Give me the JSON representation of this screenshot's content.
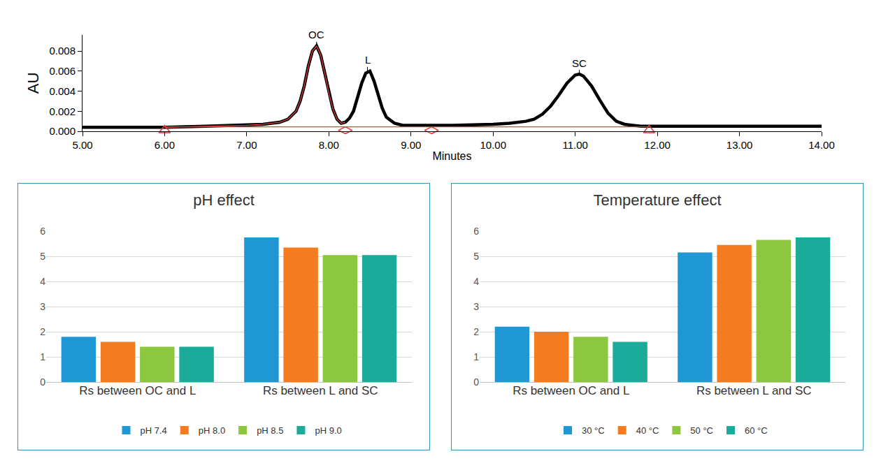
{
  "chart_data": [
    {
      "type": "line",
      "x_label": "Minutes",
      "y_label": "AU",
      "x": [
        5.0,
        5.5,
        6.0,
        6.5,
        7.0,
        7.2,
        7.4,
        7.5,
        7.6,
        7.65,
        7.7,
        7.75,
        7.8,
        7.85,
        7.9,
        7.95,
        8.0,
        8.05,
        8.1,
        8.15,
        8.2,
        8.25,
        8.3,
        8.35,
        8.4,
        8.45,
        8.5,
        8.55,
        8.6,
        8.65,
        8.7,
        8.8,
        8.9,
        9.0,
        9.5,
        10.0,
        10.2,
        10.4,
        10.5,
        10.6,
        10.7,
        10.8,
        10.9,
        11.0,
        11.05,
        11.1,
        11.2,
        11.3,
        11.4,
        11.5,
        11.6,
        11.7,
        11.8,
        12.0,
        12.5,
        13.0,
        13.5,
        14.0
      ],
      "series": [
        {
          "color": "#000000",
          "values": [
            0.0004,
            0.0004,
            0.0004,
            0.0005,
            0.0006,
            0.0007,
            0.0009,
            0.0012,
            0.002,
            0.003,
            0.0045,
            0.0065,
            0.008,
            0.0085,
            0.0076,
            0.0058,
            0.0038,
            0.0022,
            0.0012,
            0.0008,
            0.0009,
            0.0013,
            0.002,
            0.0033,
            0.0048,
            0.0058,
            0.006,
            0.005,
            0.0036,
            0.0023,
            0.0014,
            0.0008,
            0.0006,
            0.0006,
            0.0006,
            0.0007,
            0.0008,
            0.001,
            0.0012,
            0.0017,
            0.0025,
            0.0036,
            0.0048,
            0.0056,
            0.0057,
            0.0055,
            0.0045,
            0.0031,
            0.0018,
            0.001,
            0.0007,
            0.0006,
            0.0005,
            0.0005,
            0.0005,
            0.0005,
            0.0005,
            0.0005
          ]
        },
        {
          "color": "#e03a3a",
          "values": [
            null,
            null,
            0.0004,
            0.0005,
            0.0006,
            0.0007,
            0.0009,
            0.0012,
            0.002,
            0.003,
            0.0045,
            0.0065,
            0.008,
            0.0085,
            0.0076,
            0.0058,
            0.0038,
            0.0022,
            0.0012,
            0.0008,
            0.0009,
            null,
            null,
            null,
            null,
            null,
            null,
            null,
            null,
            null,
            null,
            null,
            null,
            null,
            null,
            null,
            null,
            null,
            null,
            null,
            null,
            null,
            null,
            null,
            null,
            null,
            null,
            null,
            null,
            null,
            null,
            null,
            null,
            null,
            null,
            null,
            null,
            null
          ]
        },
        {
          "color": "#e03a3a",
          "x": [
            6.0,
            11.9
          ],
          "values": [
            0.00045,
            0.00045
          ]
        },
        {
          "color": "#e03a3a",
          "marker": "triangle-up-open",
          "x": [
            6.0,
            11.9
          ],
          "values": [
            0.0001,
            0.0001
          ]
        },
        {
          "color": "#e03a3a",
          "marker": "diamond-wide-open",
          "x": [
            8.2,
            9.25
          ],
          "values": [
            0.0001,
            0.0001
          ]
        }
      ],
      "annotations": [
        {
          "text": "OC",
          "x": 7.85,
          "y": 0.0085
        },
        {
          "text": "L",
          "x": 8.47,
          "y": 0.006
        },
        {
          "text": "SC",
          "x": 11.05,
          "y": 0.0057
        }
      ],
      "xlim": [
        5,
        14
      ],
      "xticks": [
        {
          "value": 5,
          "label": "5.00"
        },
        {
          "value": 6,
          "label": "6.00"
        },
        {
          "value": 7,
          "label": "7.00"
        },
        {
          "value": 8,
          "label": "8.00"
        },
        {
          "value": 9,
          "label": "9.00"
        },
        {
          "value": 10,
          "label": "10.00"
        },
        {
          "value": 11,
          "label": "11.00"
        },
        {
          "value": 12,
          "label": "12.00"
        },
        {
          "value": 13,
          "label": "13.00"
        },
        {
          "value": 14,
          "label": "14.00"
        }
      ],
      "ylim": [
        0,
        0.0096
      ],
      "yticks": [
        {
          "value": 0,
          "label": "0.000"
        },
        {
          "value": 0.002,
          "label": "0.002"
        },
        {
          "value": 0.004,
          "label": "0.004"
        },
        {
          "value": 0.006,
          "label": "0.006"
        },
        {
          "value": 0.008,
          "label": "0.008"
        }
      ],
      "grid": false
    },
    {
      "type": "bar",
      "title": "pH effect",
      "categories": [
        "Rs between OC and L",
        "Rs between L and SC"
      ],
      "series": [
        {
          "name": "pH 7.4",
          "color": "#1f97d4",
          "values": [
            1.8,
            5.75
          ]
        },
        {
          "name": "pH 8.0",
          "color": "#f47b20",
          "values": [
            1.6,
            5.35
          ]
        },
        {
          "name": "pH 8.5",
          "color": "#8dc63f",
          "values": [
            1.4,
            5.05
          ]
        },
        {
          "name": "pH 9.0",
          "color": "#1aab9b",
          "values": [
            1.4,
            5.05
          ]
        }
      ],
      "ylim": [
        0,
        6
      ],
      "yticks": [
        0,
        1,
        2,
        3,
        4,
        5,
        6
      ],
      "grid": true,
      "legend": "bottom"
    },
    {
      "type": "bar",
      "title": "Temperature effect",
      "categories": [
        "Rs between OC and L",
        "Rs between L and SC"
      ],
      "series": [
        {
          "name": "30 °C",
          "color": "#1f97d4",
          "values": [
            2.2,
            5.15
          ]
        },
        {
          "name": "40 °C",
          "color": "#f47b20",
          "values": [
            2.0,
            5.45
          ]
        },
        {
          "name": "50 °C",
          "color": "#8dc63f",
          "values": [
            1.8,
            5.65
          ]
        },
        {
          "name": "60 °C",
          "color": "#1aab9b",
          "values": [
            1.6,
            5.75
          ]
        }
      ],
      "ylim": [
        0,
        6
      ],
      "yticks": [
        0,
        1,
        2,
        3,
        4,
        5,
        6
      ],
      "grid": true,
      "legend": "bottom"
    }
  ]
}
